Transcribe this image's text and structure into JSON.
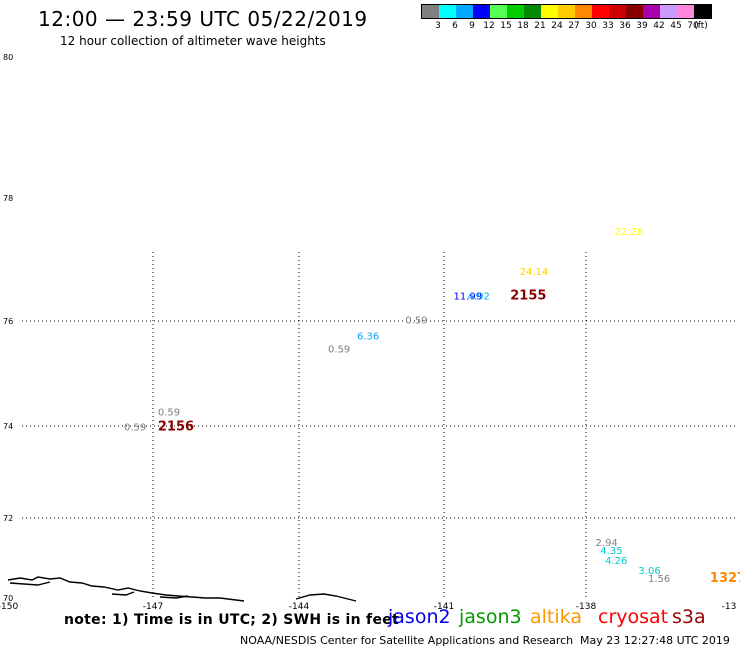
{
  "title": "12:00 — 23:59 UTC 05/22/2019",
  "subtitle": "12 hour collection of altimeter wave heights",
  "legend": {
    "colors": [
      "#808080",
      "#00ffff",
      "#00aaff",
      "#0000ff",
      "#55ff55",
      "#00cc00",
      "#008800",
      "#ffff00",
      "#ffcc00",
      "#ff8800",
      "#ff0000",
      "#cc0000",
      "#880000",
      "#aa00aa",
      "#cc99ff",
      "#ff88dd",
      "#000000"
    ],
    "labels": [
      "3",
      "6",
      "9",
      "12",
      "15",
      "18",
      "21",
      "24",
      "27",
      "30",
      "33",
      "36",
      "39",
      "42",
      "45",
      "70",
      "(ft)"
    ]
  },
  "map": {
    "lon_ticks": [
      "-150",
      "-147",
      "-144",
      "-141",
      "-138",
      "-13"
    ],
    "lat_ticks": [
      "80",
      "78",
      "76",
      "74",
      "72",
      "70"
    ],
    "observations": [
      {
        "label": "22.28",
        "color": "#ffff00",
        "lon": -137.4,
        "lat": 77.4
      },
      {
        "label": "24.14",
        "color": "#ffcc00",
        "lon": -139.4,
        "lat": 76.75
      },
      {
        "label": "11.99",
        "color": "#0000ff",
        "lon": -140.8,
        "lat": 76.35
      },
      {
        "label": "4.92",
        "color": "#00aaff",
        "lon": -140.5,
        "lat": 76.35
      },
      {
        "label": "2155",
        "color": "#880000",
        "lon": -139.6,
        "lat": 76.35,
        "bold": true
      },
      {
        "label": "0.59",
        "color": "#808080",
        "lon": -141.8,
        "lat": 75.95
      },
      {
        "label": "6.36",
        "color": "#00aaff",
        "lon": -142.8,
        "lat": 75.65
      },
      {
        "label": "0.59",
        "color": "#808080",
        "lon": -143.4,
        "lat": 75.4
      },
      {
        "label": "0.59",
        "color": "#808080",
        "lon": -146.9,
        "lat": 74.2
      },
      {
        "label": "0.59",
        "color": "#808080",
        "lon": -147.6,
        "lat": 73.9
      },
      {
        "label": "2156",
        "color": "#880000",
        "lon": -146.9,
        "lat": 73.9,
        "bold": true
      },
      {
        "label": "2.94",
        "color": "#808080",
        "lon": -137.8,
        "lat": 71.3
      },
      {
        "label": "4.35",
        "color": "#00cccc",
        "lon": -137.7,
        "lat": 71.1
      },
      {
        "label": "4.26",
        "color": "#00cccc",
        "lon": -137.6,
        "lat": 70.85
      },
      {
        "label": "3.06",
        "color": "#00cccc",
        "lon": -136.9,
        "lat": 70.6
      },
      {
        "label": "1.56",
        "color": "#808080",
        "lon": -136.7,
        "lat": 70.4
      },
      {
        "label": "1327",
        "color": "#ff8800",
        "lon": -135.4,
        "lat": 70.4,
        "bold": true
      }
    ]
  },
  "footer": {
    "note": "note: 1) Time is in UTC; 2) SWH is in feet",
    "satellites": [
      {
        "name": "jason2",
        "color": "#0000ee"
      },
      {
        "name": "jason3",
        "color": "#009900"
      },
      {
        "name": "altika",
        "color": "#ff9900"
      },
      {
        "name": "cryosat",
        "color": "#ff0000"
      },
      {
        "name": "s3a",
        "color": "#990000"
      }
    ],
    "credit": "NOAA/NESDIS Center for Satellite Applications and Research",
    "timestamp": "May 23 12:27:48 UTC 2019"
  }
}
